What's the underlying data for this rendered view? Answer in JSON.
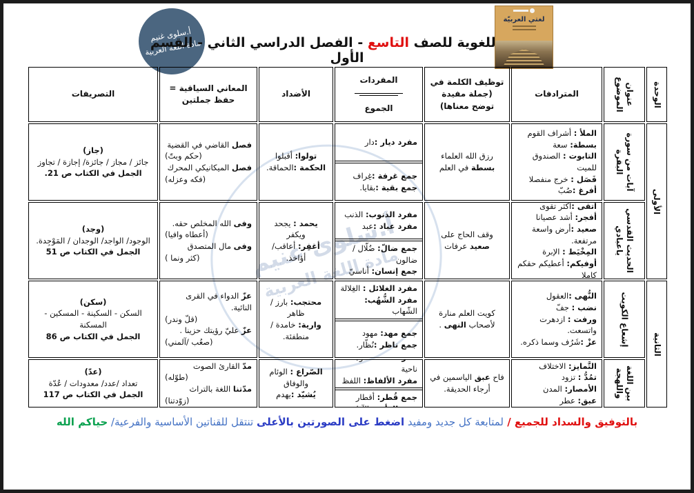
{
  "header": {
    "badge": {
      "line1": "أ.سلوى غنيم",
      "line2": "مادة اللغة العربية"
    },
    "title": {
      "pre": "الثروة اللغوية للصف ",
      "grade": "التاسع",
      "post": " - الفصل الدراسي الثاني - القسم الأول"
    },
    "book_title": "لغتي العربيّة"
  },
  "watermark": {
    "line1": "أ.سلوى غنيم",
    "line2": "مادة اللغة العربية"
  },
  "table": {
    "headers": {
      "unit": "الوحدة",
      "topic": "عنوان الموضوع",
      "synonyms": "المترادفات",
      "usage": "توظيف الكلمة في (جملة مفيدة توضح معناها)",
      "vocab_singular": "المفردات",
      "vocab_plural": "الجموع",
      "antonyms": "الأضداد",
      "contextual": "المعاني السياقية = حفظ جملتين",
      "derivations": "التصريفات"
    },
    "units": [
      {
        "label": "الأولى"
      },
      {
        "label": "الثانية"
      }
    ],
    "rows": [
      {
        "topic": "آيات من سورة البقرة",
        "synonyms": [
          {
            "x": [
              {
                "s": "الملأ :",
                "b": 1
              },
              {
                "s": " أشراف القوم"
              }
            ]
          },
          {
            "x": [
              {
                "s": "بسطة:",
                "b": 1
              },
              {
                "s": " سعة"
              }
            ]
          },
          {
            "x": [
              {
                "s": "التابوت :",
                "b": 1
              },
              {
                "s": " الصندوق للميت"
              }
            ]
          },
          {
            "x": [
              {
                "s": "فَصَل :",
                "b": 1
              },
              {
                "s": " خرج منفصلا"
              }
            ]
          },
          {
            "x": [
              {
                "s": "أفرغ :",
                "b": 1
              },
              {
                "s": "صُبّ"
              }
            ]
          }
        ],
        "usage": [
          {
            "x": [
              {
                "s": "رزق الله العلماء "
              },
              {
                "s": "بسطة",
                "b": 1
              },
              {
                "s": " في العلم"
              }
            ]
          }
        ],
        "singular": [
          {
            "x": [
              {
                "s": "مفرد ديار :",
                "b": 1
              },
              {
                "s": "دار"
              }
            ]
          }
        ],
        "plural": [
          {
            "x": [
              {
                "s": "جمع غرفة :",
                "b": 1
              },
              {
                "s": "غِراف"
              }
            ]
          },
          {
            "x": [
              {
                "s": "جمع بقية :",
                "b": 1
              },
              {
                "s": "بقايا."
              }
            ]
          }
        ],
        "antonyms": [
          {
            "x": [
              {
                "s": "تولوا:",
                "b": 1
              },
              {
                "s": " أقبلوا"
              }
            ]
          },
          {
            "x": [
              {
                "s": "الحكمة :",
                "b": 1
              },
              {
                "s": "الحماقة."
              }
            ]
          }
        ],
        "contextual": [
          {
            "x": [
              {
                "s": "فصل",
                "b": 1
              },
              {
                "s": " القاضي في القضية"
              }
            ]
          },
          {
            "x": [
              {
                "s": "(حكم وبتّ)"
              }
            ],
            "al": "l"
          },
          {
            "x": [
              {
                "s": "فصل",
                "b": 1
              },
              {
                "s": " الميكانيكي المحرك"
              }
            ]
          },
          {
            "x": [
              {
                "s": "(فكه وعزله)"
              }
            ],
            "al": "l"
          }
        ],
        "derivations": [
          {
            "x": [
              {
                "s": "(جاز)",
                "b": 1
              }
            ]
          },
          {
            "x": [
              {
                "s": "جائز / مجاز / جائزة/ إجازة / تجاوز"
              }
            ]
          },
          {
            "x": [
              {
                "s": "الجمل في الكتاب ص 21.",
                "b": 1
              }
            ]
          }
        ]
      },
      {
        "topic": "الحديث القدسي ياعبادي",
        "synonyms": [
          {
            "x": [
              {
                "s": "أتقى :",
                "b": 1
              },
              {
                "s": "أكثر تقوى"
              }
            ]
          },
          {
            "x": [
              {
                "s": "أفجر:",
                "b": 1
              },
              {
                "s": " أشد عصيانا"
              }
            ]
          },
          {
            "x": [
              {
                "s": "صعيد :",
                "b": 1
              },
              {
                "s": "أرض واسعة مرتفعة."
              }
            ]
          },
          {
            "x": [
              {
                "s": "المِخْيَط :",
                "b": 1
              },
              {
                "s": " الإبرة"
              }
            ]
          },
          {
            "x": [
              {
                "s": "أوفيكم:",
                "b": 1
              },
              {
                "s": " أعطيكم حقكم كاملا"
              }
            ]
          }
        ],
        "usage": [
          {
            "x": [
              {
                "s": "وقف الحاج على "
              },
              {
                "s": "صعيد",
                "b": 1
              },
              {
                "s": " عرفات"
              }
            ]
          }
        ],
        "singular": [
          {
            "x": [
              {
                "s": "مفرد الذنوب:",
                "b": 1
              },
              {
                "s": " الذنب"
              }
            ]
          },
          {
            "x": [
              {
                "s": "مفرد عباد :",
                "b": 1
              },
              {
                "s": "عبد"
              }
            ]
          }
        ],
        "plural": [
          {
            "x": [
              {
                "s": "جمع ضالّ:",
                "b": 1
              },
              {
                "s": " ضُلّال /ضالون"
              }
            ]
          },
          {
            "x": [
              {
                "s": "جمع إنسان:",
                "b": 1
              },
              {
                "s": " أناسيّ"
              }
            ]
          }
        ],
        "antonyms": [
          {
            "x": [
              {
                "s": "يحمد :",
                "b": 1
              },
              {
                "s": " يجحد ويكفر"
              }
            ]
          },
          {
            "x": [
              {
                "s": "أغفِر:",
                "b": 1
              },
              {
                "s": " أعاقب/ أؤاخذ."
              }
            ]
          }
        ],
        "contextual": [
          {
            "x": [
              {
                "s": "وفى",
                "b": 1
              },
              {
                "s": " الله المخلص حقه."
              }
            ]
          },
          {
            "x": [
              {
                "s": "(أعطاه وافيا)"
              }
            ],
            "al": "l"
          },
          {
            "x": [
              {
                "s": "وفى",
                "b": 1
              },
              {
                "s": " مال المتصدق"
              }
            ]
          },
          {
            "x": [
              {
                "s": "(كثر ونما )"
              }
            ],
            "al": "l"
          }
        ],
        "derivations": [
          {
            "x": [
              {
                "s": "(وجد)",
                "b": 1
              }
            ]
          },
          {
            "x": [
              {
                "s": "الوجود/ الواجد/ الوجدان / المَوْجِدة."
              }
            ]
          },
          {
            "x": [
              {
                "s": "الجمل في الكتاب ص 51",
                "b": 1
              }
            ]
          }
        ]
      },
      {
        "topic": "إشعاع الكويت",
        "synonyms": [
          {
            "x": [
              {
                "s": "النُّهى :",
                "b": 1
              },
              {
                "s": "العقول"
              }
            ]
          },
          {
            "x": [
              {
                "s": "نضب :",
                "b": 1
              },
              {
                "s": " جفّ"
              }
            ]
          },
          {
            "x": [
              {
                "s": "ورفت :",
                "b": 1
              },
              {
                "s": " ازدهرت واتسعت."
              }
            ]
          },
          {
            "x": [
              {
                "s": "عزْ :",
                "b": 1
              },
              {
                "s": "شَرُف وسما ذكره."
              }
            ]
          }
        ],
        "usage": [
          {
            "x": [
              {
                "s": "كويت العلم منارة لأصحاب "
              },
              {
                "s": "النهى",
                "b": 1
              },
              {
                "s": " ."
              }
            ]
          }
        ],
        "singular": [
          {
            "x": [
              {
                "s": "مفرد الغلائل :",
                "b": 1
              },
              {
                "s": " الغِلالة"
              }
            ]
          },
          {
            "x": [
              {
                "s": "مفرد الشُّهُب:",
                "b": 1
              },
              {
                "s": " الشّهاب"
              }
            ]
          }
        ],
        "plural": [
          {
            "x": [
              {
                "s": "جمع مهد:",
                "b": 1
              },
              {
                "s": " مهود"
              }
            ]
          },
          {
            "x": [
              {
                "s": "جمع ناظر :",
                "b": 1
              },
              {
                "s": "نُظّار."
              }
            ]
          }
        ],
        "antonyms": [
          {
            "x": [
              {
                "s": "محتجب:",
                "b": 1
              },
              {
                "s": " بارز / ظاهر"
              }
            ]
          },
          {
            "x": [
              {
                "s": "وارية:",
                "b": 1
              },
              {
                "s": " خامدة /منطفئة."
              }
            ]
          }
        ],
        "contextual": [
          {
            "x": [
              {
                "s": "عزّ",
                "b": 1
              },
              {
                "s": " الدواء في القرى النائية."
              }
            ]
          },
          {
            "x": [
              {
                "s": "(قلّ وندر)"
              }
            ],
            "al": "l"
          },
          {
            "x": [
              {
                "s": "عزّ",
                "b": 1
              },
              {
                "s": " عليّ رؤيتك حزينا ."
              }
            ]
          },
          {
            "x": [
              {
                "s": "(صعُب /آلمني)"
              }
            ],
            "al": "l"
          }
        ],
        "derivations": [
          {
            "x": [
              {
                "s": "(سكن)",
                "b": 1
              }
            ]
          },
          {
            "x": [
              {
                "s": "السكن - السكينة - المسكين - المسكنة"
              }
            ]
          },
          {
            "x": [
              {
                "s": "الجمل في الكتاب ص 86",
                "b": 1
              }
            ]
          }
        ]
      },
      {
        "topic": "بين اللغة واللهجة",
        "synonyms": [
          {
            "x": [
              {
                "s": "التَّمايز:",
                "b": 1
              },
              {
                "s": " الاختلاف"
              }
            ]
          },
          {
            "x": [
              {
                "s": "تمُدُّ :",
                "b": 1
              },
              {
                "s": " تزود"
              }
            ]
          },
          {
            "x": [
              {
                "s": "الأمصار:",
                "b": 1
              },
              {
                "s": " المدن"
              }
            ]
          },
          {
            "x": [
              {
                "s": "عبق:",
                "b": 1
              },
              {
                "s": " عطر"
              }
            ]
          }
        ],
        "usage": [
          {
            "x": [
              {
                "s": "فاح "
              },
              {
                "s": "عبق",
                "b": 1
              },
              {
                "s": " الياسمين في أرجاء الحديقة."
              }
            ]
          }
        ],
        "singular": [
          {
            "x": [
              {
                "s": "مفرد أنحاء:",
                "b": 1
              },
              {
                "s": " نحو/ ناحية"
              }
            ]
          },
          {
            "x": [
              {
                "s": "مفرد الألفاظ:",
                "b": 1
              },
              {
                "s": " اللفظ"
              }
            ]
          }
        ],
        "plural": [
          {
            "x": [
              {
                "s": "جمع قُطر:",
                "b": 1
              },
              {
                "s": " أقطار"
              }
            ]
          },
          {
            "x": [
              {
                "s": "جمع الرأي :",
                "b": 1
              },
              {
                "s": " الآراء"
              }
            ]
          }
        ],
        "antonyms": [
          {
            "x": [
              {
                "s": "الصّراع :",
                "b": 1
              },
              {
                "s": " الوئام والوفاق"
              }
            ]
          },
          {
            "x": [
              {
                "s": "يُشيّد :",
                "b": 1
              },
              {
                "s": "يهدم"
              }
            ]
          }
        ],
        "contextual": [
          {
            "x": [
              {
                "s": "مدّ",
                "b": 1
              },
              {
                "s": " القارئ الصوت"
              }
            ]
          },
          {
            "x": [
              {
                "s": "(طوّله)"
              }
            ],
            "al": "l"
          },
          {
            "x": [
              {
                "s": "مدّتنا",
                "b": 1
              },
              {
                "s": " اللغة بالتراث"
              }
            ]
          },
          {
            "x": [
              {
                "s": "(زوّدتنا)"
              }
            ],
            "al": "l"
          }
        ],
        "derivations": [
          {
            "x": [
              {
                "s": "(عدّ)",
                "b": 1
              }
            ]
          },
          {
            "x": [
              {
                "s": "تعداد /عدد/ معدودات / عُدّة"
              }
            ]
          },
          {
            "x": [
              {
                "s": "الجمل في الكتاب ص 117",
                "b": 1
              }
            ]
          }
        ]
      }
    ]
  },
  "footer": {
    "segments": [
      {
        "s": "بالتوفيق والسداد للجميع",
        "c": "red"
      },
      {
        "s": " / ",
        "c": "red"
      },
      {
        "s": "لمتابعة كل جديد ومفيد ",
        "c": "blue"
      },
      {
        "s": "اضغط على الصورتين بالأعلى",
        "c": "navy"
      },
      {
        "s": " تنتقل للقناتين الأساسية والفرعية/ ",
        "c": "blue"
      },
      {
        "s": "حياكم الله",
        "c": "green"
      }
    ]
  }
}
